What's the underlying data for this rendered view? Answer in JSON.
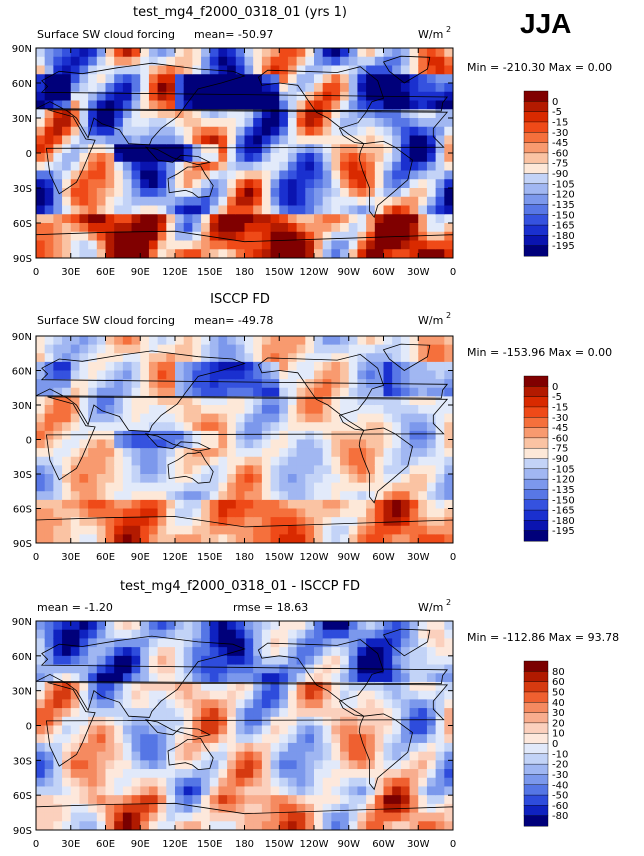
{
  "season": "JJA",
  "lat_ticks": [
    "90N",
    "60N",
    "30N",
    "0",
    "30S",
    "60S",
    "90S"
  ],
  "lon_ticks": [
    "0",
    "30E",
    "60E",
    "90E",
    "120E",
    "150E",
    "180",
    "150W",
    "120W",
    "90W",
    "60W",
    "30W",
    "0"
  ],
  "units_base": "W/m",
  "units_exp": "2",
  "colors": {
    "sw_palette": [
      "#800000",
      "#b31a00",
      "#d92a00",
      "#ef4a18",
      "#f5703c",
      "#f89a6f",
      "#fac3a3",
      "#fde8d8",
      "#e2eafa",
      "#c3d3f7",
      "#a1b7f2",
      "#7c98ec",
      "#5877e6",
      "#3552df",
      "#1a30cf",
      "#0a14b0",
      "#00007a"
    ],
    "diff_palette": [
      "#7a0000",
      "#b01a00",
      "#d63a10",
      "#ef6030",
      "#f58a60",
      "#f8ad8e",
      "#fbd0bd",
      "#fde8dc",
      "#e1e9fa",
      "#c2d3f7",
      "#9fb6f2",
      "#7b98ec",
      "#5576e5",
      "#2e4cdc",
      "#0f22c0",
      "#00007a"
    ]
  },
  "chart_data": [
    {
      "type": "heatmap",
      "title": "test_mg4_f2000_0318_01 (yrs 1)",
      "subtitle": "Surface SW cloud forcing",
      "mean_text": "mean=  -50.97",
      "min_max_text": "Min = -210.30 Max =    0.00",
      "min": -210.3,
      "max": 0.0,
      "xlim": [
        0,
        360
      ],
      "ylim": [
        -90,
        90
      ],
      "legend_labels": [
        "0",
        "-5",
        "-15",
        "-30",
        "-45",
        "-60",
        "-75",
        "-90",
        "-105",
        "-120",
        "-135",
        "-150",
        "-165",
        "-180",
        "-195"
      ]
    },
    {
      "type": "heatmap",
      "title": "ISCCP FD",
      "subtitle": "Surface SW cloud forcing",
      "mean_text": "mean=  -49.78",
      "min_max_text": "Min = -153.96 Max =    0.00",
      "min": -153.96,
      "max": 0.0,
      "xlim": [
        0,
        360
      ],
      "ylim": [
        -90,
        90
      ],
      "legend_labels": [
        "0",
        "-5",
        "-15",
        "-30",
        "-45",
        "-60",
        "-75",
        "-90",
        "-105",
        "-120",
        "-135",
        "-150",
        "-165",
        "-180",
        "-195"
      ]
    },
    {
      "type": "heatmap",
      "title": "test_mg4_f2000_0318_01 - ISCCP FD",
      "subtitle": "mean =  -1.20",
      "mean_text": "rmse =  18.63",
      "min_max_text": "Min = -112.86 Max =  93.78",
      "min": -112.86,
      "max": 93.78,
      "xlim": [
        0,
        360
      ],
      "ylim": [
        -90,
        90
      ],
      "legend_labels": [
        "80",
        "60",
        "50",
        "40",
        "30",
        "20",
        "10",
        "0",
        "-10",
        "-20",
        "-30",
        "-40",
        "-50",
        "-60",
        "-80"
      ]
    }
  ]
}
